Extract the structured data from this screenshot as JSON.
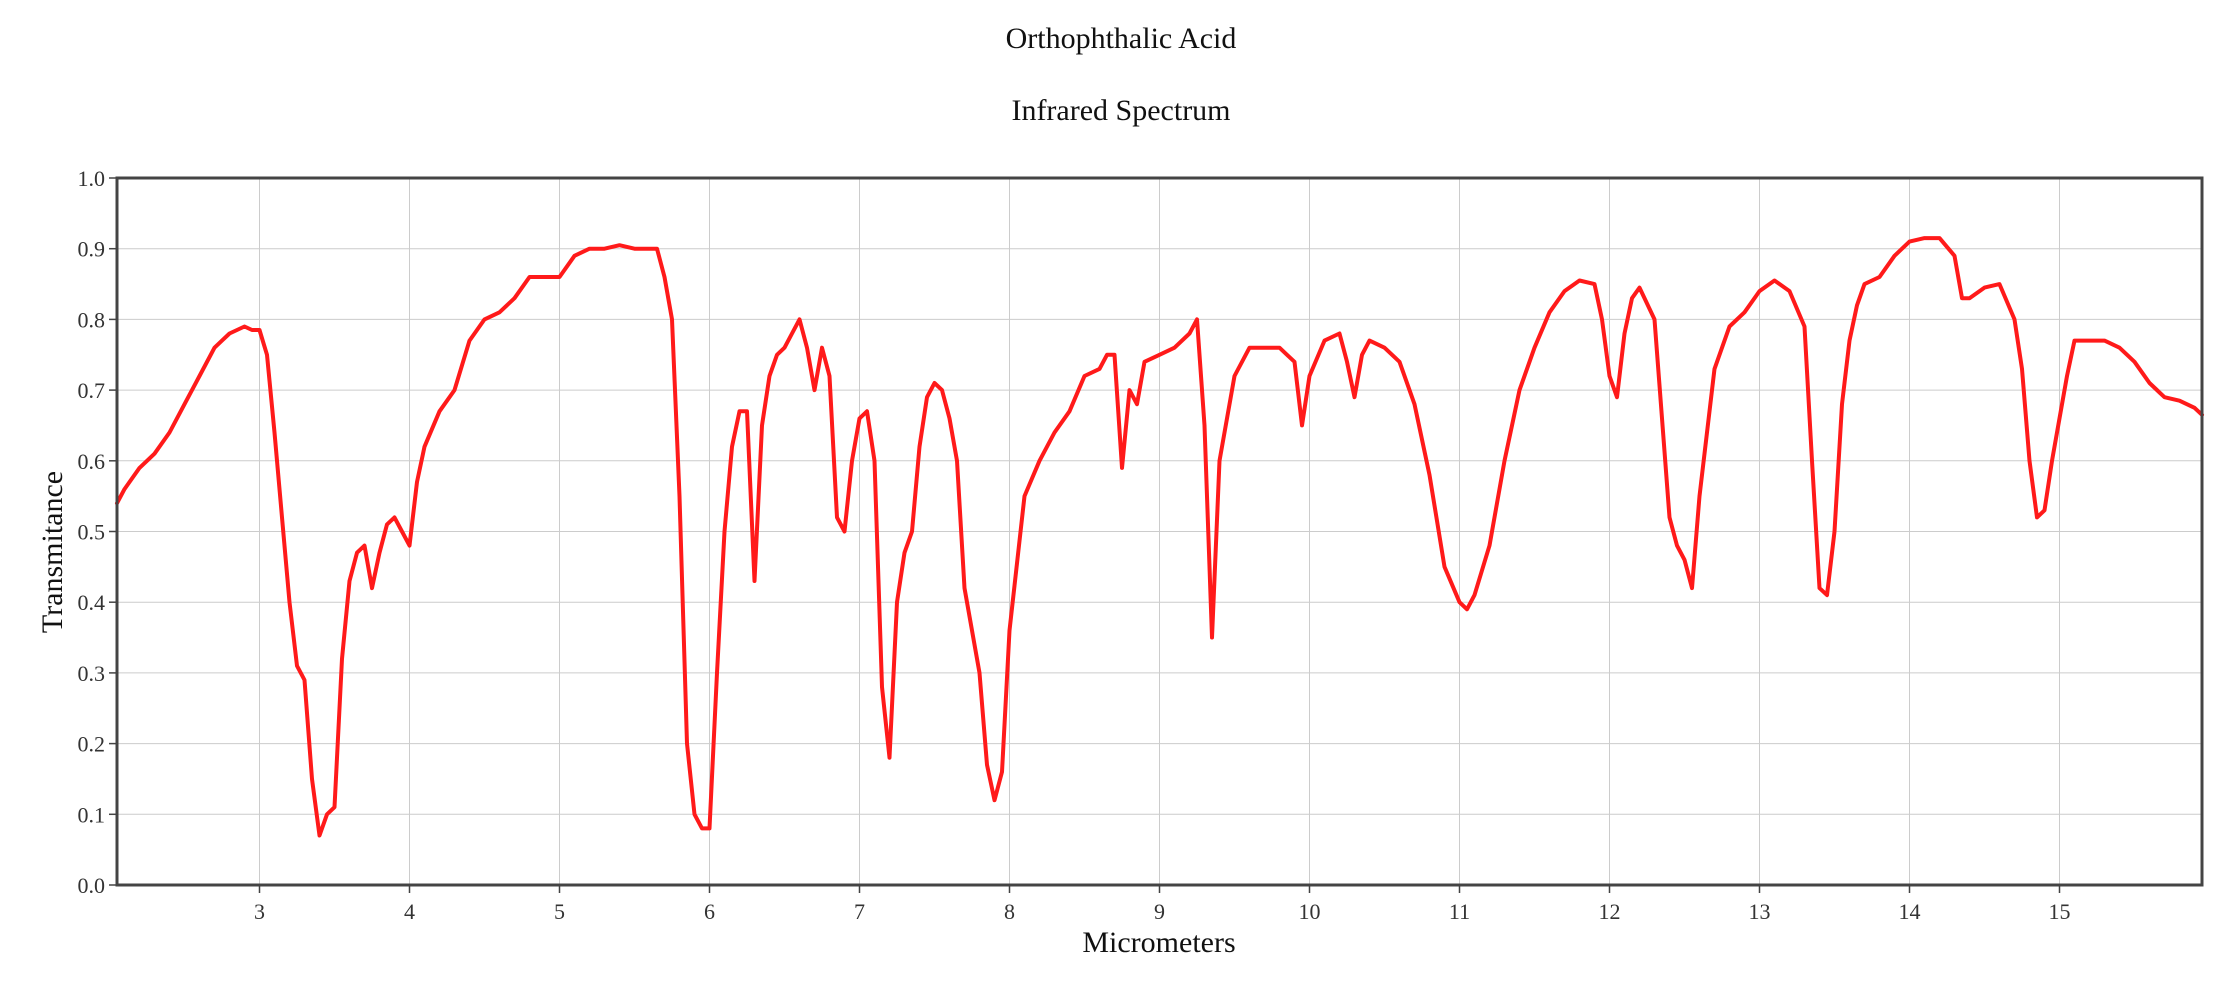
{
  "chart_data": {
    "type": "line",
    "title": "Orthophthalic Acid",
    "subtitle": "Infrared Spectrum",
    "xlabel": "Micrometers",
    "ylabel": "Transmitance",
    "xlim": [
      2.05,
      15.95
    ],
    "ylim": [
      0.0,
      1.0
    ],
    "x_ticks": [
      3,
      4,
      5,
      6,
      7,
      8,
      9,
      10,
      11,
      12,
      13,
      14,
      15
    ],
    "x_tick_labels": [
      "3",
      "4",
      "5",
      "6",
      "7",
      "8",
      "9",
      "10",
      "11",
      "12",
      "13",
      "14",
      "15"
    ],
    "y_ticks": [
      0.0,
      0.1,
      0.2,
      0.3,
      0.4,
      0.5,
      0.6,
      0.7,
      0.8,
      0.9,
      1.0
    ],
    "y_tick_labels": [
      "0.0",
      "0.1",
      "0.2",
      "0.3",
      "0.4",
      "0.5",
      "0.6",
      "0.7",
      "0.8",
      "0.9",
      "1.0"
    ],
    "grid": true,
    "legend": "none",
    "series": [
      {
        "color": "#ff1a1a",
        "x": [
          2.05,
          2.1,
          2.2,
          2.3,
          2.4,
          2.5,
          2.6,
          2.7,
          2.75,
          2.8,
          2.9,
          2.95,
          3.0,
          3.05,
          3.1,
          3.15,
          3.2,
          3.25,
          3.3,
          3.35,
          3.4,
          3.45,
          3.5,
          3.55,
          3.6,
          3.65,
          3.7,
          3.75,
          3.8,
          3.85,
          3.9,
          3.95,
          4.0,
          4.05,
          4.1,
          4.2,
          4.3,
          4.4,
          4.5,
          4.6,
          4.7,
          4.8,
          4.9,
          5.0,
          5.1,
          5.2,
          5.3,
          5.4,
          5.5,
          5.6,
          5.65,
          5.7,
          5.75,
          5.8,
          5.85,
          5.9,
          5.95,
          6.0,
          6.05,
          6.1,
          6.15,
          6.2,
          6.25,
          6.3,
          6.35,
          6.4,
          6.45,
          6.5,
          6.55,
          6.6,
          6.65,
          6.7,
          6.75,
          6.8,
          6.85,
          6.9,
          6.95,
          7.0,
          7.05,
          7.1,
          7.15,
          7.2,
          7.25,
          7.3,
          7.35,
          7.4,
          7.45,
          7.5,
          7.55,
          7.6,
          7.65,
          7.7,
          7.75,
          7.8,
          7.85,
          7.9,
          7.95,
          8.0,
          8.1,
          8.2,
          8.3,
          8.4,
          8.5,
          8.6,
          8.65,
          8.7,
          8.75,
          8.8,
          8.85,
          8.9,
          9.0,
          9.1,
          9.2,
          9.25,
          9.3,
          9.35,
          9.4,
          9.5,
          9.6,
          9.7,
          9.8,
          9.85,
          9.9,
          9.95,
          10.0,
          10.1,
          10.2,
          10.25,
          10.3,
          10.35,
          10.4,
          10.5,
          10.6,
          10.7,
          10.8,
          10.9,
          11.0,
          11.05,
          11.1,
          11.2,
          11.3,
          11.4,
          11.5,
          11.6,
          11.7,
          11.8,
          11.9,
          11.95,
          12.0,
          12.05,
          12.1,
          12.15,
          12.2,
          12.3,
          12.4,
          12.45,
          12.5,
          12.55,
          12.6,
          12.65,
          12.7,
          12.8,
          12.9,
          13.0,
          13.1,
          13.2,
          13.3,
          13.35,
          13.4,
          13.45,
          13.5,
          13.55,
          13.6,
          13.65,
          13.7,
          13.8,
          13.9,
          14.0,
          14.1,
          14.2,
          14.3,
          14.35,
          14.4,
          14.5,
          14.6,
          14.7,
          14.75,
          14.8,
          14.85,
          14.9,
          14.95,
          15.0,
          15.05,
          15.1,
          15.2,
          15.3,
          15.4,
          15.5,
          15.6,
          15.7,
          15.8,
          15.9,
          15.95
        ],
        "y": [
          0.54,
          0.56,
          0.59,
          0.61,
          0.64,
          0.68,
          0.72,
          0.76,
          0.77,
          0.78,
          0.79,
          0.785,
          0.785,
          0.75,
          0.64,
          0.52,
          0.4,
          0.31,
          0.29,
          0.15,
          0.07,
          0.1,
          0.11,
          0.32,
          0.43,
          0.47,
          0.48,
          0.42,
          0.47,
          0.51,
          0.52,
          0.5,
          0.48,
          0.57,
          0.62,
          0.67,
          0.7,
          0.77,
          0.8,
          0.81,
          0.83,
          0.86,
          0.86,
          0.86,
          0.89,
          0.9,
          0.9,
          0.905,
          0.9,
          0.9,
          0.9,
          0.86,
          0.8,
          0.55,
          0.2,
          0.1,
          0.08,
          0.08,
          0.3,
          0.5,
          0.62,
          0.67,
          0.67,
          0.43,
          0.65,
          0.72,
          0.75,
          0.76,
          0.78,
          0.8,
          0.76,
          0.7,
          0.76,
          0.72,
          0.52,
          0.5,
          0.6,
          0.66,
          0.67,
          0.6,
          0.28,
          0.18,
          0.4,
          0.47,
          0.5,
          0.62,
          0.69,
          0.71,
          0.7,
          0.66,
          0.6,
          0.42,
          0.36,
          0.3,
          0.17,
          0.12,
          0.16,
          0.36,
          0.55,
          0.6,
          0.64,
          0.67,
          0.72,
          0.73,
          0.75,
          0.75,
          0.59,
          0.7,
          0.68,
          0.74,
          0.75,
          0.76,
          0.78,
          0.8,
          0.65,
          0.35,
          0.6,
          0.72,
          0.76,
          0.76,
          0.76,
          0.75,
          0.74,
          0.65,
          0.72,
          0.77,
          0.78,
          0.74,
          0.69,
          0.75,
          0.77,
          0.76,
          0.74,
          0.68,
          0.58,
          0.45,
          0.4,
          0.39,
          0.41,
          0.48,
          0.6,
          0.7,
          0.76,
          0.81,
          0.84,
          0.855,
          0.85,
          0.8,
          0.72,
          0.69,
          0.78,
          0.83,
          0.845,
          0.8,
          0.52,
          0.48,
          0.46,
          0.42,
          0.55,
          0.64,
          0.73,
          0.79,
          0.81,
          0.84,
          0.855,
          0.84,
          0.79,
          0.6,
          0.42,
          0.41,
          0.5,
          0.68,
          0.77,
          0.82,
          0.85,
          0.86,
          0.89,
          0.91,
          0.915,
          0.915,
          0.89,
          0.83,
          0.83,
          0.845,
          0.85,
          0.8,
          0.73,
          0.6,
          0.52,
          0.53,
          0.6,
          0.66,
          0.72,
          0.77,
          0.77,
          0.77,
          0.76,
          0.74,
          0.71,
          0.69,
          0.685,
          0.675,
          0.665
        ]
      }
    ]
  }
}
